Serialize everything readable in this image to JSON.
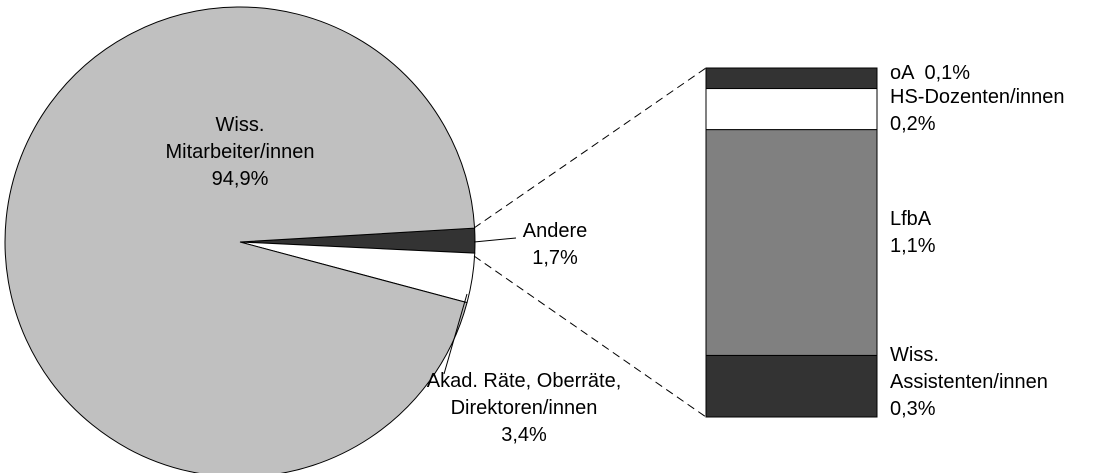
{
  "chart_data": [
    {
      "type": "pie",
      "categories": [
        "Andere",
        "Akad. Räte, Oberräte,\nDirektoren/innen",
        "Wiss.\nMitarbeiter/innen"
      ],
      "values": [
        1.7,
        3.4,
        94.9
      ],
      "value_labels": [
        "1,7%",
        "3,4%",
        "94,9%"
      ],
      "colors": [
        "#333333",
        "#ffffff",
        "#c0c0c0"
      ]
    },
    {
      "type": "stacked_bar",
      "categories": [
        "Wiss.\nAssistenten/innen",
        "LfbA",
        "HS-Dozenten/innen",
        "oA"
      ],
      "values": [
        0.3,
        1.1,
        0.2,
        0.1
      ],
      "value_labels": [
        "0,3%",
        "1,1%",
        "0,2%",
        "0,1%"
      ],
      "colors": [
        "#333333",
        "#808080",
        "#ffffff",
        "#333333"
      ]
    }
  ]
}
